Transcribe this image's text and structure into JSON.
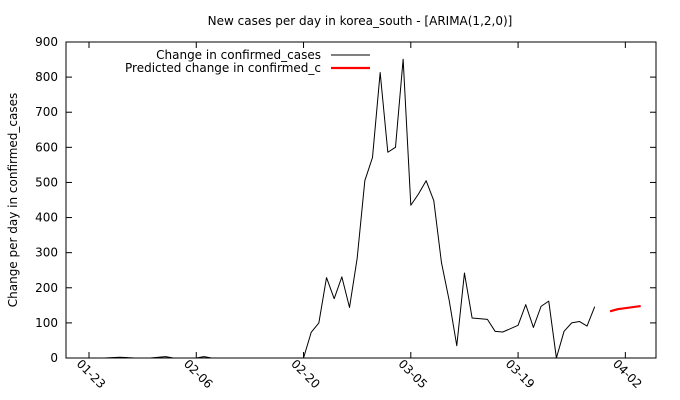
{
  "chart_data": {
    "type": "line",
    "title": "New cases per day in korea_south -  [ARIMA(1,2,0)]",
    "xlabel": "",
    "ylabel": "Change per day in confirmed_cases",
    "xlim": [
      "2020-01-20",
      "2020-04-06"
    ],
    "ylim": [
      0,
      900
    ],
    "yticks": [
      0,
      100,
      200,
      300,
      400,
      500,
      600,
      700,
      800,
      900
    ],
    "xticks": [
      {
        "date": "2020-01-23",
        "label": "01-23"
      },
      {
        "date": "2020-02-06",
        "label": "02-06"
      },
      {
        "date": "2020-02-20",
        "label": "02-20"
      },
      {
        "date": "2020-03-05",
        "label": "03-05"
      },
      {
        "date": "2020-03-19",
        "label": "03-19"
      },
      {
        "date": "2020-04-02",
        "label": "04-02"
      }
    ],
    "grid": false,
    "legend_position": "top-left",
    "series": [
      {
        "name": "Change in confirmed_cases",
        "color": "#000000",
        "points": [
          [
            "2020-01-23",
            0
          ],
          [
            "2020-01-25",
            0
          ],
          [
            "2020-01-27",
            2
          ],
          [
            "2020-01-29",
            0
          ],
          [
            "2020-01-31",
            0
          ],
          [
            "2020-02-02",
            4
          ],
          [
            "2020-02-03",
            0
          ],
          [
            "2020-02-05",
            0
          ],
          [
            "2020-02-06",
            0
          ],
          [
            "2020-02-07",
            4
          ],
          [
            "2020-02-08",
            0
          ],
          [
            "2020-02-10",
            0
          ],
          [
            "2020-02-13",
            0
          ],
          [
            "2020-02-15",
            0
          ],
          [
            "2020-02-17",
            0
          ],
          [
            "2020-02-19",
            0
          ],
          [
            "2020-02-20",
            0
          ],
          [
            "2020-02-21",
            73
          ],
          [
            "2020-02-22",
            100
          ],
          [
            "2020-02-23",
            229
          ],
          [
            "2020-02-24",
            169
          ],
          [
            "2020-02-25",
            231
          ],
          [
            "2020-02-26",
            144
          ],
          [
            "2020-02-27",
            284
          ],
          [
            "2020-02-28",
            505
          ],
          [
            "2020-02-29",
            571
          ],
          [
            "2020-03-01",
            813
          ],
          [
            "2020-03-02",
            586
          ],
          [
            "2020-03-03",
            600
          ],
          [
            "2020-03-04",
            851
          ],
          [
            "2020-03-05",
            435
          ],
          [
            "2020-03-06",
            467
          ],
          [
            "2020-03-07",
            505
          ],
          [
            "2020-03-08",
            448
          ],
          [
            "2020-03-09",
            272
          ],
          [
            "2020-03-10",
            165
          ],
          [
            "2020-03-11",
            35
          ],
          [
            "2020-03-12",
            242
          ],
          [
            "2020-03-13",
            114
          ],
          [
            "2020-03-15",
            110
          ],
          [
            "2020-03-16",
            76
          ],
          [
            "2020-03-17",
            74
          ],
          [
            "2020-03-19",
            93
          ],
          [
            "2020-03-20",
            152
          ],
          [
            "2020-03-21",
            87
          ],
          [
            "2020-03-22",
            147
          ],
          [
            "2020-03-23",
            162
          ],
          [
            "2020-03-24",
            0
          ],
          [
            "2020-03-25",
            76
          ],
          [
            "2020-03-26",
            100
          ],
          [
            "2020-03-27",
            104
          ],
          [
            "2020-03-28",
            91
          ],
          [
            "2020-03-29",
            146
          ]
        ]
      },
      {
        "name": "Predicted change in confirmed_c",
        "color": "#ff0000",
        "points": [
          [
            "2020-03-31",
            133
          ],
          [
            "2020-04-01",
            139
          ],
          [
            "2020-04-04",
            148
          ]
        ]
      }
    ]
  }
}
